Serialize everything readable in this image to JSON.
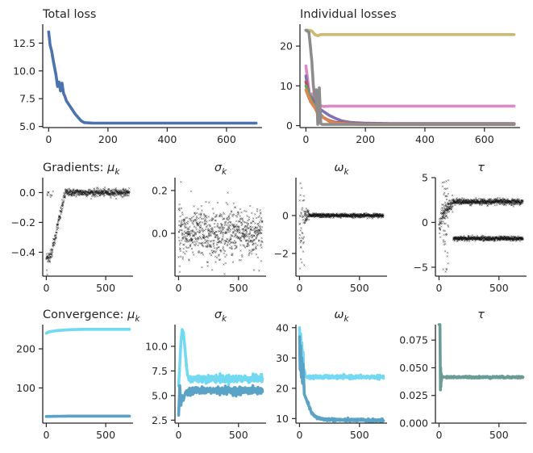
{
  "chart_data": [
    {
      "id": "total_loss",
      "type": "line",
      "title": "Total loss",
      "xlim": [
        -20,
        720
      ],
      "ylim": [
        4.9,
        14.2
      ],
      "xticks": [
        0,
        200,
        400,
        600
      ],
      "yticks": [
        5.0,
        7.5,
        10.0,
        12.5
      ],
      "ytick_labels": [
        "5.0",
        "7.5",
        "10.0",
        "12.5"
      ],
      "series": [
        {
          "color": "#4C72B0",
          "x": [
            0,
            5,
            10,
            15,
            20,
            25,
            30,
            35,
            40,
            45,
            50,
            55,
            60,
            70,
            80,
            90,
            100,
            110,
            120,
            150,
            200,
            300,
            400,
            500,
            600,
            700
          ],
          "y": [
            13.5,
            12.3,
            11.8,
            11.0,
            10.3,
            9.6,
            8.6,
            9.0,
            8.2,
            8.9,
            8.0,
            7.7,
            7.3,
            6.9,
            6.5,
            6.1,
            5.8,
            5.5,
            5.35,
            5.3,
            5.3,
            5.3,
            5.3,
            5.3,
            5.3,
            5.3
          ]
        }
      ]
    },
    {
      "id": "individual_losses",
      "type": "line",
      "title": "Individual losses",
      "xlim": [
        -20,
        720
      ],
      "ylim": [
        -0.5,
        25.5
      ],
      "xticks": [
        0,
        200,
        400,
        600
      ],
      "yticks": [
        0,
        10,
        20
      ],
      "ytick_labels": [
        "0",
        "10",
        "20"
      ],
      "series": [
        {
          "color": "#CCB974",
          "x": [
            0,
            10,
            20,
            30,
            40,
            50,
            60,
            100,
            200,
            300,
            400,
            500,
            600,
            700
          ],
          "y": [
            24.0,
            24.0,
            23.8,
            22.9,
            22.6,
            22.9,
            22.9,
            22.9,
            22.9,
            22.9,
            22.9,
            22.9,
            22.9,
            22.9
          ]
        },
        {
          "color": "#DA8BC3",
          "x": [
            0,
            5,
            10,
            15,
            20,
            30,
            40,
            50,
            60,
            80,
            100,
            200,
            300,
            400,
            500,
            600,
            700
          ],
          "y": [
            15.0,
            12.0,
            9.0,
            6.0,
            8.0,
            5.5,
            4.0,
            5.0,
            4.8,
            4.9,
            4.9,
            4.9,
            4.9,
            4.9,
            4.9,
            4.9,
            4.9
          ]
        },
        {
          "color": "#8172B3",
          "x": [
            0,
            5,
            10,
            20,
            30,
            40,
            60,
            80,
            100,
            120,
            150,
            200,
            300,
            400,
            500,
            600,
            700
          ],
          "y": [
            12.5,
            10.0,
            8.0,
            7.0,
            6.0,
            4.5,
            3.5,
            2.5,
            1.8,
            1.2,
            0.8,
            0.6,
            0.5,
            0.5,
            0.5,
            0.5,
            0.5
          ]
        },
        {
          "color": "#C44E52",
          "x": [
            0,
            10,
            20,
            30,
            40,
            60,
            80,
            100,
            150,
            200,
            700
          ],
          "y": [
            11.0,
            8.0,
            6.5,
            5.0,
            3.0,
            2.0,
            1.2,
            0.8,
            0.5,
            0.4,
            0.4
          ]
        },
        {
          "color": "#55A868",
          "x": [
            0,
            10,
            20,
            30,
            40,
            60,
            80,
            100,
            150,
            200,
            700
          ],
          "y": [
            10.0,
            8.0,
            6.0,
            5.0,
            3.5,
            2.0,
            1.0,
            0.6,
            0.4,
            0.3,
            0.3
          ]
        },
        {
          "color": "#DD8452",
          "x": [
            0,
            10,
            20,
            30,
            40,
            60,
            80,
            100,
            150,
            200,
            700
          ],
          "y": [
            9.0,
            7.0,
            5.5,
            4.5,
            3.0,
            2.0,
            1.0,
            0.6,
            0.4,
            0.3,
            0.3
          ]
        },
        {
          "color": "#8C8C8C",
          "x": [
            0,
            10,
            15,
            20,
            25,
            30,
            35,
            40,
            45,
            50,
            55,
            60,
            100,
            200,
            300,
            400,
            500,
            600,
            700
          ],
          "y": [
            24.0,
            23.5,
            20.0,
            16.0,
            10.0,
            7.0,
            9.0,
            0.3,
            9.5,
            0.5,
            0.3,
            0.3,
            0.3,
            0.3,
            0.3,
            0.3,
            0.3,
            0.3,
            0.3
          ]
        }
      ]
    },
    {
      "id": "grad_mu",
      "type": "scatter",
      "title": "Gradients: μ",
      "title_sub": "k",
      "xlim": [
        -30,
        730
      ],
      "ylim": [
        -0.56,
        0.1
      ],
      "xticks": [
        0,
        500
      ],
      "yticks": [
        0.0,
        -0.2,
        -0.4
      ],
      "ytick_labels": [
        "0.0",
        "−0.2",
        "−0.4"
      ],
      "pattern": "grad_mu",
      "marker": "×",
      "color": "#111111"
    },
    {
      "id": "grad_sigma",
      "type": "scatter",
      "title": "σ",
      "title_sub": "k",
      "xlim": [
        -30,
        730
      ],
      "ylim": [
        -0.2,
        0.26
      ],
      "xticks": [
        0,
        500
      ],
      "yticks": [
        0.2,
        0.0
      ],
      "ytick_labels": [
        "0.2",
        "0.0"
      ],
      "pattern": "grad_sigma",
      "marker": "×",
      "color": "#111111"
    },
    {
      "id": "grad_omega",
      "type": "scatter",
      "title": "ω",
      "title_sub": "k",
      "xlim": [
        -30,
        730
      ],
      "ylim": [
        -3.2,
        2.0
      ],
      "xticks": [
        0,
        500
      ],
      "yticks": [
        0,
        -2
      ],
      "ytick_labels": [
        "0",
        "−2"
      ],
      "pattern": "grad_omega",
      "marker": "×",
      "color": "#111111"
    },
    {
      "id": "grad_tau",
      "type": "scatter",
      "title": "τ",
      "title_sub": "",
      "xlim": [
        -30,
        730
      ],
      "ylim": [
        -6.0,
        5.0
      ],
      "xticks": [
        0,
        500
      ],
      "yticks": [
        5,
        0,
        -5
      ],
      "ytick_labels": [
        "5",
        "0",
        "−5"
      ],
      "pattern": "grad_tau",
      "marker": "×",
      "color": "#111111"
    },
    {
      "id": "conv_mu",
      "type": "line",
      "title": "Convergence: μ",
      "title_sub": "k",
      "xlim": [
        -30,
        730
      ],
      "ylim": [
        10,
        262
      ],
      "xticks": [
        0,
        500
      ],
      "yticks": [
        200,
        100
      ],
      "ytick_labels": [
        "200",
        "100"
      ],
      "series": [
        {
          "color": "#72D9F0",
          "x": [
            0,
            20,
            50,
            100,
            150,
            200,
            300,
            400,
            500,
            600,
            700
          ],
          "y": [
            240,
            243,
            245,
            247,
            248,
            249,
            250,
            250,
            250,
            250,
            250
          ]
        },
        {
          "color": "#5BA3C6",
          "x": [
            0,
            100,
            200,
            400,
            700
          ],
          "y": [
            27,
            27.5,
            28,
            28,
            28
          ]
        }
      ]
    },
    {
      "id": "conv_sigma",
      "type": "line",
      "title": "σ",
      "title_sub": "k",
      "xlim": [
        -30,
        730
      ],
      "ylim": [
        2.2,
        12.2
      ],
      "xticks": [
        0,
        500
      ],
      "yticks": [
        10.0,
        7.5,
        5.0,
        2.5
      ],
      "ytick_labels": [
        "10.0",
        "7.5",
        "5.0",
        "2.5"
      ],
      "series": [
        {
          "color": "#72D9F0",
          "x": [
            0,
            10,
            20,
            30,
            40,
            50,
            60,
            70,
            80,
            90,
            100,
            150,
            200,
            300,
            400,
            500,
            600,
            700
          ],
          "y": [
            6.0,
            8.0,
            10.5,
            11.7,
            11.4,
            10.2,
            8.8,
            7.5,
            6.9,
            6.6,
            6.7,
            6.7,
            6.7,
            6.7,
            6.7,
            6.7,
            6.7,
            6.7
          ],
          "noise": 0.18
        },
        {
          "color": "#5BA3C6",
          "x": [
            0,
            10,
            20,
            30,
            40,
            50,
            60,
            70,
            80,
            100,
            150,
            200,
            300,
            400,
            500,
            600,
            700
          ],
          "y": [
            3.0,
            6.0,
            4.0,
            5.0,
            4.5,
            5.0,
            5.4,
            5.2,
            5.5,
            5.5,
            5.5,
            5.5,
            5.5,
            5.5,
            5.5,
            5.5,
            5.5
          ],
          "noise": 0.18
        }
      ]
    },
    {
      "id": "conv_omega",
      "type": "line",
      "title": "ω",
      "title_sub": "k",
      "xlim": [
        -30,
        730
      ],
      "ylim": [
        8.5,
        41
      ],
      "xticks": [
        0,
        500
      ],
      "yticks": [
        40,
        30,
        20,
        10
      ],
      "ytick_labels": [
        "40",
        "30",
        "20",
        "10"
      ],
      "series": [
        {
          "color": "#72D9F0",
          "x": [
            0,
            5,
            10,
            15,
            20,
            25,
            30,
            35,
            40,
            50,
            60,
            80,
            100,
            200,
            300,
            400,
            500,
            600,
            700
          ],
          "y": [
            40,
            30,
            38,
            23,
            35,
            25,
            32,
            24,
            26,
            24,
            23.8,
            23.7,
            23.7,
            23.7,
            23.7,
            23.7,
            23.7,
            23.7,
            23.7
          ],
          "noise": 0.25
        },
        {
          "color": "#5BA3C6",
          "x": [
            0,
            5,
            10,
            15,
            20,
            25,
            30,
            40,
            50,
            60,
            80,
            100,
            120,
            150,
            200,
            300,
            400,
            500,
            600,
            700
          ],
          "y": [
            37,
            24,
            34,
            22,
            30,
            20,
            28,
            18,
            17,
            16,
            14,
            12,
            11,
            10.2,
            9.8,
            9.6,
            9.5,
            9.5,
            9.4,
            9.4
          ],
          "noise": 0.2
        }
      ]
    },
    {
      "id": "conv_tau",
      "type": "line",
      "title": "τ",
      "title_sub": "",
      "xlim": [
        -30,
        730
      ],
      "ylim": [
        0.0,
        0.089
      ],
      "xticks": [
        0,
        500
      ],
      "yticks": [
        0.075,
        0.05,
        0.025,
        0.0
      ],
      "ytick_labels": [
        "0.075",
        "0.050",
        "0.025",
        "0.000"
      ],
      "series": [
        {
          "color": "#6A9C96",
          "x": [
            0,
            8,
            10,
            12,
            14,
            16,
            18,
            20,
            24,
            28,
            32,
            40,
            60,
            100,
            200,
            300,
            400,
            500,
            600,
            700
          ],
          "y": [
            0.089,
            0.089,
            0.06,
            0.03,
            0.05,
            0.033,
            0.045,
            0.038,
            0.043,
            0.041,
            0.042,
            0.0415,
            0.0415,
            0.0415,
            0.0415,
            0.0415,
            0.0415,
            0.0415,
            0.0415,
            0.0415
          ],
          "noise": 0.0004
        }
      ]
    }
  ]
}
